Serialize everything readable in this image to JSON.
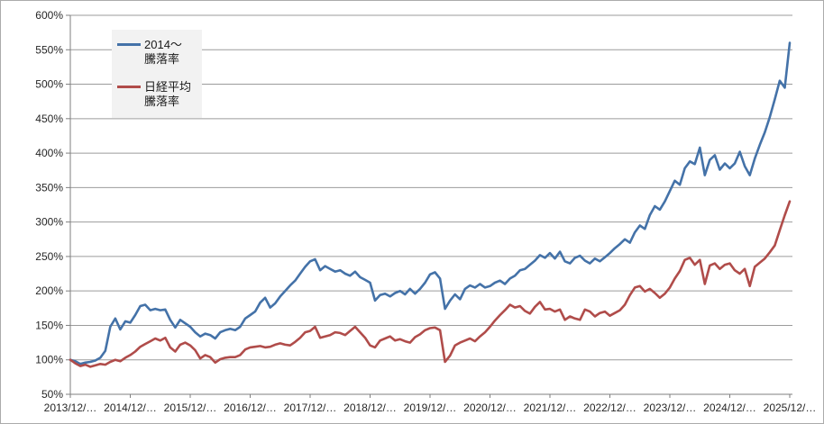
{
  "chart_data": {
    "type": "line",
    "title": "",
    "xlabel": "",
    "ylabel": "",
    "grid": true,
    "legend_position": "top-left-inside",
    "ylim": [
      50,
      600
    ],
    "y_tick_labels": [
      "600%",
      "550%",
      "500%",
      "450%",
      "400%",
      "350%",
      "300%",
      "250%",
      "200%",
      "150%",
      "100%",
      "50%"
    ],
    "y_ticks": [
      600,
      550,
      500,
      450,
      400,
      350,
      300,
      250,
      200,
      150,
      100,
      50
    ],
    "x_tick_labels": [
      "2013/12/…",
      "2014/12/…",
      "2015/12/…",
      "2016/12/…",
      "2017/12/…",
      "2018/12/…",
      "2019/12/…",
      "2020/12/…",
      "2021/12/…",
      "2022/12/…",
      "2023/12/…",
      "2024/12/…",
      "2025/12/…"
    ],
    "points_per_interval": 12,
    "series": [
      {
        "label1": "2014～",
        "label2": "騰落率",
        "color": "#4472a8",
        "values": [
          100,
          98,
          94,
          96,
          97,
          99,
          103,
          113,
          148,
          160,
          144,
          156,
          154,
          165,
          178,
          180,
          172,
          174,
          172,
          173,
          158,
          147,
          158,
          153,
          148,
          140,
          134,
          138,
          136,
          131,
          140,
          143,
          145,
          143,
          148,
          160,
          165,
          170,
          183,
          190,
          176,
          182,
          192,
          200,
          208,
          215,
          225,
          235,
          243,
          246,
          230,
          236,
          232,
          228,
          230,
          225,
          222,
          228,
          220,
          216,
          212,
          186,
          194,
          196,
          192,
          197,
          200,
          195,
          203,
          196,
          203,
          212,
          224,
          227,
          218,
          174,
          186,
          195,
          188,
          203,
          208,
          205,
          210,
          205,
          207,
          212,
          215,
          210,
          218,
          222,
          230,
          232,
          238,
          244,
          252,
          248,
          255,
          247,
          257,
          243,
          240,
          248,
          251,
          244,
          240,
          247,
          243,
          249,
          255,
          262,
          268,
          275,
          270,
          285,
          295,
          290,
          310,
          323,
          318,
          330,
          345,
          360,
          354,
          378,
          388,
          384,
          408,
          368,
          390,
          397,
          376,
          385,
          378,
          385,
          402,
          381,
          368,
          392,
          412,
          430,
          452,
          478,
          505,
          495,
          560
        ]
      },
      {
        "label1": "日経平均",
        "label2": "騰落率",
        "color": "#b04c4a",
        "values": [
          100,
          95,
          91,
          93,
          90,
          92,
          94,
          93,
          97,
          100,
          98,
          103,
          107,
          112,
          119,
          123,
          127,
          131,
          128,
          132,
          118,
          112,
          122,
          125,
          121,
          114,
          102,
          107,
          104,
          96,
          101,
          103,
          104,
          104,
          107,
          115,
          118,
          119,
          120,
          118,
          119,
          122,
          124,
          122,
          121,
          126,
          132,
          140,
          142,
          148,
          132,
          134,
          136,
          140,
          139,
          136,
          142,
          148,
          140,
          132,
          121,
          118,
          128,
          131,
          134,
          128,
          130,
          127,
          125,
          133,
          137,
          143,
          146,
          147,
          143,
          97,
          106,
          121,
          125,
          128,
          131,
          127,
          134,
          140,
          148,
          157,
          165,
          172,
          180,
          176,
          178,
          171,
          167,
          177,
          184,
          173,
          174,
          170,
          173,
          158,
          163,
          160,
          158,
          173,
          170,
          163,
          168,
          170,
          164,
          168,
          172,
          180,
          194,
          205,
          207,
          199,
          203,
          197,
          190,
          196,
          205,
          218,
          229,
          245,
          248,
          238,
          245,
          210,
          237,
          240,
          232,
          238,
          240,
          230,
          225,
          232,
          207,
          235,
          241,
          247,
          256,
          266,
          288,
          310,
          330
        ]
      }
    ],
    "colors": {
      "gridline": "#9b9b9b",
      "axis": "#7f7f7f",
      "tick_label": "#262626",
      "legend_background": "#f2f2f2",
      "plot_background": "#ffffff"
    }
  }
}
